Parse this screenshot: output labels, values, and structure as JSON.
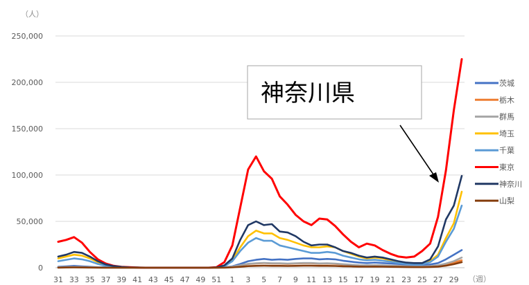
{
  "chart_data": {
    "type": "line",
    "y_unit": "（人）",
    "x_unit": "（週）",
    "ylim": [
      0,
      250000
    ],
    "y_ticks": [
      0,
      50000,
      100000,
      150000,
      200000,
      250000
    ],
    "y_tick_labels": [
      "0",
      "50,000",
      "100,000",
      "150,000",
      "200,000",
      "250,000"
    ],
    "grid": true,
    "legend_position": "right",
    "x": [
      31,
      32,
      33,
      34,
      35,
      36,
      37,
      38,
      39,
      40,
      41,
      42,
      43,
      44,
      45,
      46,
      47,
      48,
      49,
      50,
      51,
      52,
      1,
      2,
      3,
      4,
      5,
      6,
      7,
      8,
      9,
      10,
      11,
      12,
      13,
      14,
      15,
      16,
      17,
      18,
      19,
      20,
      21,
      22,
      23,
      24,
      25,
      26,
      27,
      28,
      29,
      30
    ],
    "x_tick_labels": [
      "31",
      "33",
      "35",
      "37",
      "39",
      "41",
      "43",
      "45",
      "47",
      "49",
      "51",
      "1",
      "3",
      "5",
      "7",
      "9",
      "11",
      "13",
      "15",
      "17",
      "19",
      "21",
      "23",
      "25",
      "27",
      "29"
    ],
    "series": [
      {
        "name": "茨城",
        "color": "#4472C4",
        "values": [
          1000,
          1500,
          2000,
          1500,
          1000,
          500,
          300,
          200,
          100,
          50,
          20,
          0,
          0,
          0,
          0,
          0,
          0,
          0,
          0,
          0,
          0,
          500,
          1500,
          4000,
          7000,
          8500,
          9500,
          8500,
          9000,
          8500,
          9500,
          10000,
          10000,
          9000,
          9500,
          9000,
          7500,
          6500,
          5500,
          5000,
          5500,
          5000,
          4500,
          4000,
          3000,
          2500,
          2500,
          3500,
          5000,
          9000,
          14000,
          19000
        ]
      },
      {
        "name": "栃木",
        "color": "#ED7D31",
        "values": [
          400,
          600,
          800,
          600,
          400,
          200,
          100,
          50,
          30,
          20,
          10,
          0,
          0,
          0,
          0,
          0,
          0,
          0,
          0,
          0,
          0,
          300,
          1000,
          2500,
          4000,
          4500,
          5000,
          4500,
          4500,
          4200,
          4500,
          4800,
          4800,
          4300,
          4500,
          4200,
          3500,
          3000,
          2500,
          2300,
          2500,
          2300,
          2000,
          1800,
          1500,
          1200,
          1200,
          1500,
          2000,
          3500,
          5500,
          8000
        ]
      },
      {
        "name": "群馬",
        "color": "#A5A5A5",
        "values": [
          500,
          700,
          900,
          700,
          500,
          250,
          150,
          80,
          40,
          20,
          10,
          0,
          0,
          0,
          0,
          0,
          0,
          0,
          0,
          0,
          0,
          300,
          1100,
          2700,
          4200,
          4800,
          5200,
          4800,
          4800,
          4500,
          4800,
          5100,
          5100,
          4600,
          4800,
          4500,
          3800,
          3200,
          2700,
          2500,
          2700,
          2500,
          2200,
          2000,
          1600,
          1300,
          1300,
          1700,
          2500,
          4500,
          7000,
          11000
        ]
      },
      {
        "name": "埼玉",
        "color": "#FFC000",
        "values": [
          10000,
          12000,
          14000,
          13000,
          10000,
          6000,
          3000,
          1500,
          800,
          400,
          200,
          0,
          0,
          0,
          0,
          0,
          0,
          0,
          0,
          0,
          200,
          2000,
          8000,
          22000,
          34000,
          40000,
          37000,
          37000,
          32000,
          30000,
          27000,
          24000,
          22000,
          22000,
          23000,
          22000,
          18000,
          15000,
          12000,
          10000,
          11000,
          10000,
          8000,
          6000,
          5000,
          4000,
          4000,
          7000,
          14000,
          32000,
          48000,
          82000
        ]
      },
      {
        "name": "千葉",
        "color": "#5B9BD5",
        "values": [
          7000,
          8500,
          10000,
          9000,
          7000,
          4000,
          2000,
          1000,
          600,
          300,
          100,
          0,
          0,
          0,
          0,
          0,
          0,
          0,
          0,
          0,
          200,
          1500,
          7000,
          18000,
          27000,
          32000,
          29000,
          29000,
          24000,
          22000,
          20000,
          18000,
          16000,
          16000,
          17000,
          16000,
          13000,
          11000,
          9000,
          8000,
          8500,
          7500,
          6500,
          5000,
          4000,
          3500,
          3500,
          6000,
          12000,
          28000,
          42000,
          67000
        ]
      },
      {
        "name": "東京",
        "color": "#FF0000",
        "values": [
          28000,
          30000,
          33000,
          27000,
          17000,
          9000,
          4500,
          2000,
          1000,
          500,
          200,
          0,
          0,
          0,
          0,
          0,
          0,
          0,
          0,
          0,
          500,
          6000,
          24000,
          65000,
          106000,
          120000,
          104000,
          96000,
          77000,
          68000,
          57000,
          50000,
          46000,
          53000,
          52000,
          45000,
          36000,
          28000,
          22000,
          26000,
          24000,
          19000,
          15000,
          12000,
          11000,
          12000,
          18000,
          26000,
          55000,
          105000,
          170000,
          225000
        ]
      },
      {
        "name": "神奈川",
        "color": "#203864",
        "values": [
          12000,
          14000,
          17000,
          16000,
          12000,
          7000,
          3500,
          1800,
          900,
          400,
          200,
          0,
          0,
          0,
          0,
          0,
          0,
          0,
          0,
          0,
          300,
          2500,
          10000,
          30000,
          46000,
          50000,
          46000,
          47000,
          39000,
          38000,
          34000,
          28000,
          24000,
          25000,
          25000,
          22000,
          18000,
          16000,
          13000,
          11000,
          12000,
          11000,
          9000,
          7000,
          5500,
          5000,
          5000,
          9000,
          23000,
          52000,
          67000,
          99000
        ]
      },
      {
        "name": "山梨",
        "color": "#843C0C",
        "values": [
          100,
          200,
          300,
          200,
          150,
          80,
          40,
          20,
          10,
          5,
          0,
          0,
          0,
          0,
          0,
          0,
          0,
          0,
          0,
          0,
          0,
          100,
          400,
          1000,
          1700,
          2000,
          2200,
          2000,
          2000,
          1900,
          2000,
          2200,
          2200,
          2000,
          2000,
          1900,
          1600,
          1400,
          1200,
          1100,
          1200,
          1100,
          1000,
          900,
          700,
          600,
          600,
          800,
          1200,
          2200,
          3800,
          6000
        ]
      }
    ],
    "annotation": {
      "text": "神奈川県",
      "points_to_series": "神奈川"
    }
  }
}
